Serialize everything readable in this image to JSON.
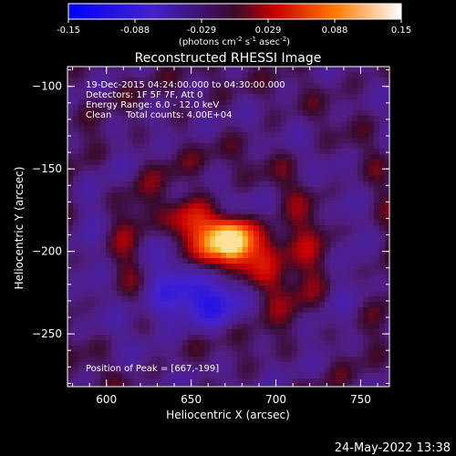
{
  "chart_data": {
    "type": "heatmap",
    "title": "Reconstructed RHESSI Image",
    "xlabel": "Heliocentric X (arcsec)",
    "ylabel": "Heliocentric Y (arcsec)",
    "xlim": [
      577,
      767
    ],
    "ylim": [
      -282,
      -88
    ],
    "x_ticks": [
      600,
      650,
      700,
      750
    ],
    "y_ticks": [
      -100,
      -150,
      -200,
      -250
    ],
    "colorbar": {
      "ticks": [
        "-0.15",
        "-0.088",
        "-0.029",
        "0.029",
        "0.088",
        "0.15"
      ],
      "range": [
        -0.15,
        0.15
      ],
      "unit_label_main": "(photons cm",
      "unit_sup1": "-2",
      "unit_mid": " s",
      "unit_sup2": "-1",
      "unit_mid2": " asec",
      "unit_sup3": "-2",
      "unit_close": ")"
    },
    "annotations": [
      "19-Dec-2015 04:24:00.000 to 04:30:00.000",
      "Detectors: 1F 5F 7F, Att 0",
      "Energy Range: 6.0 - 12.0 keV",
      "Clean     Total counts: 4.00E+04"
    ],
    "peak_label": "Position of Peak = [667,-199]",
    "peak": [
      667,
      -199
    ],
    "peak_value": 0.15
  },
  "footer": {
    "date": "24-May-2022 13:38"
  },
  "colors": {
    "background": "#000000",
    "frame": "#ffffff"
  }
}
